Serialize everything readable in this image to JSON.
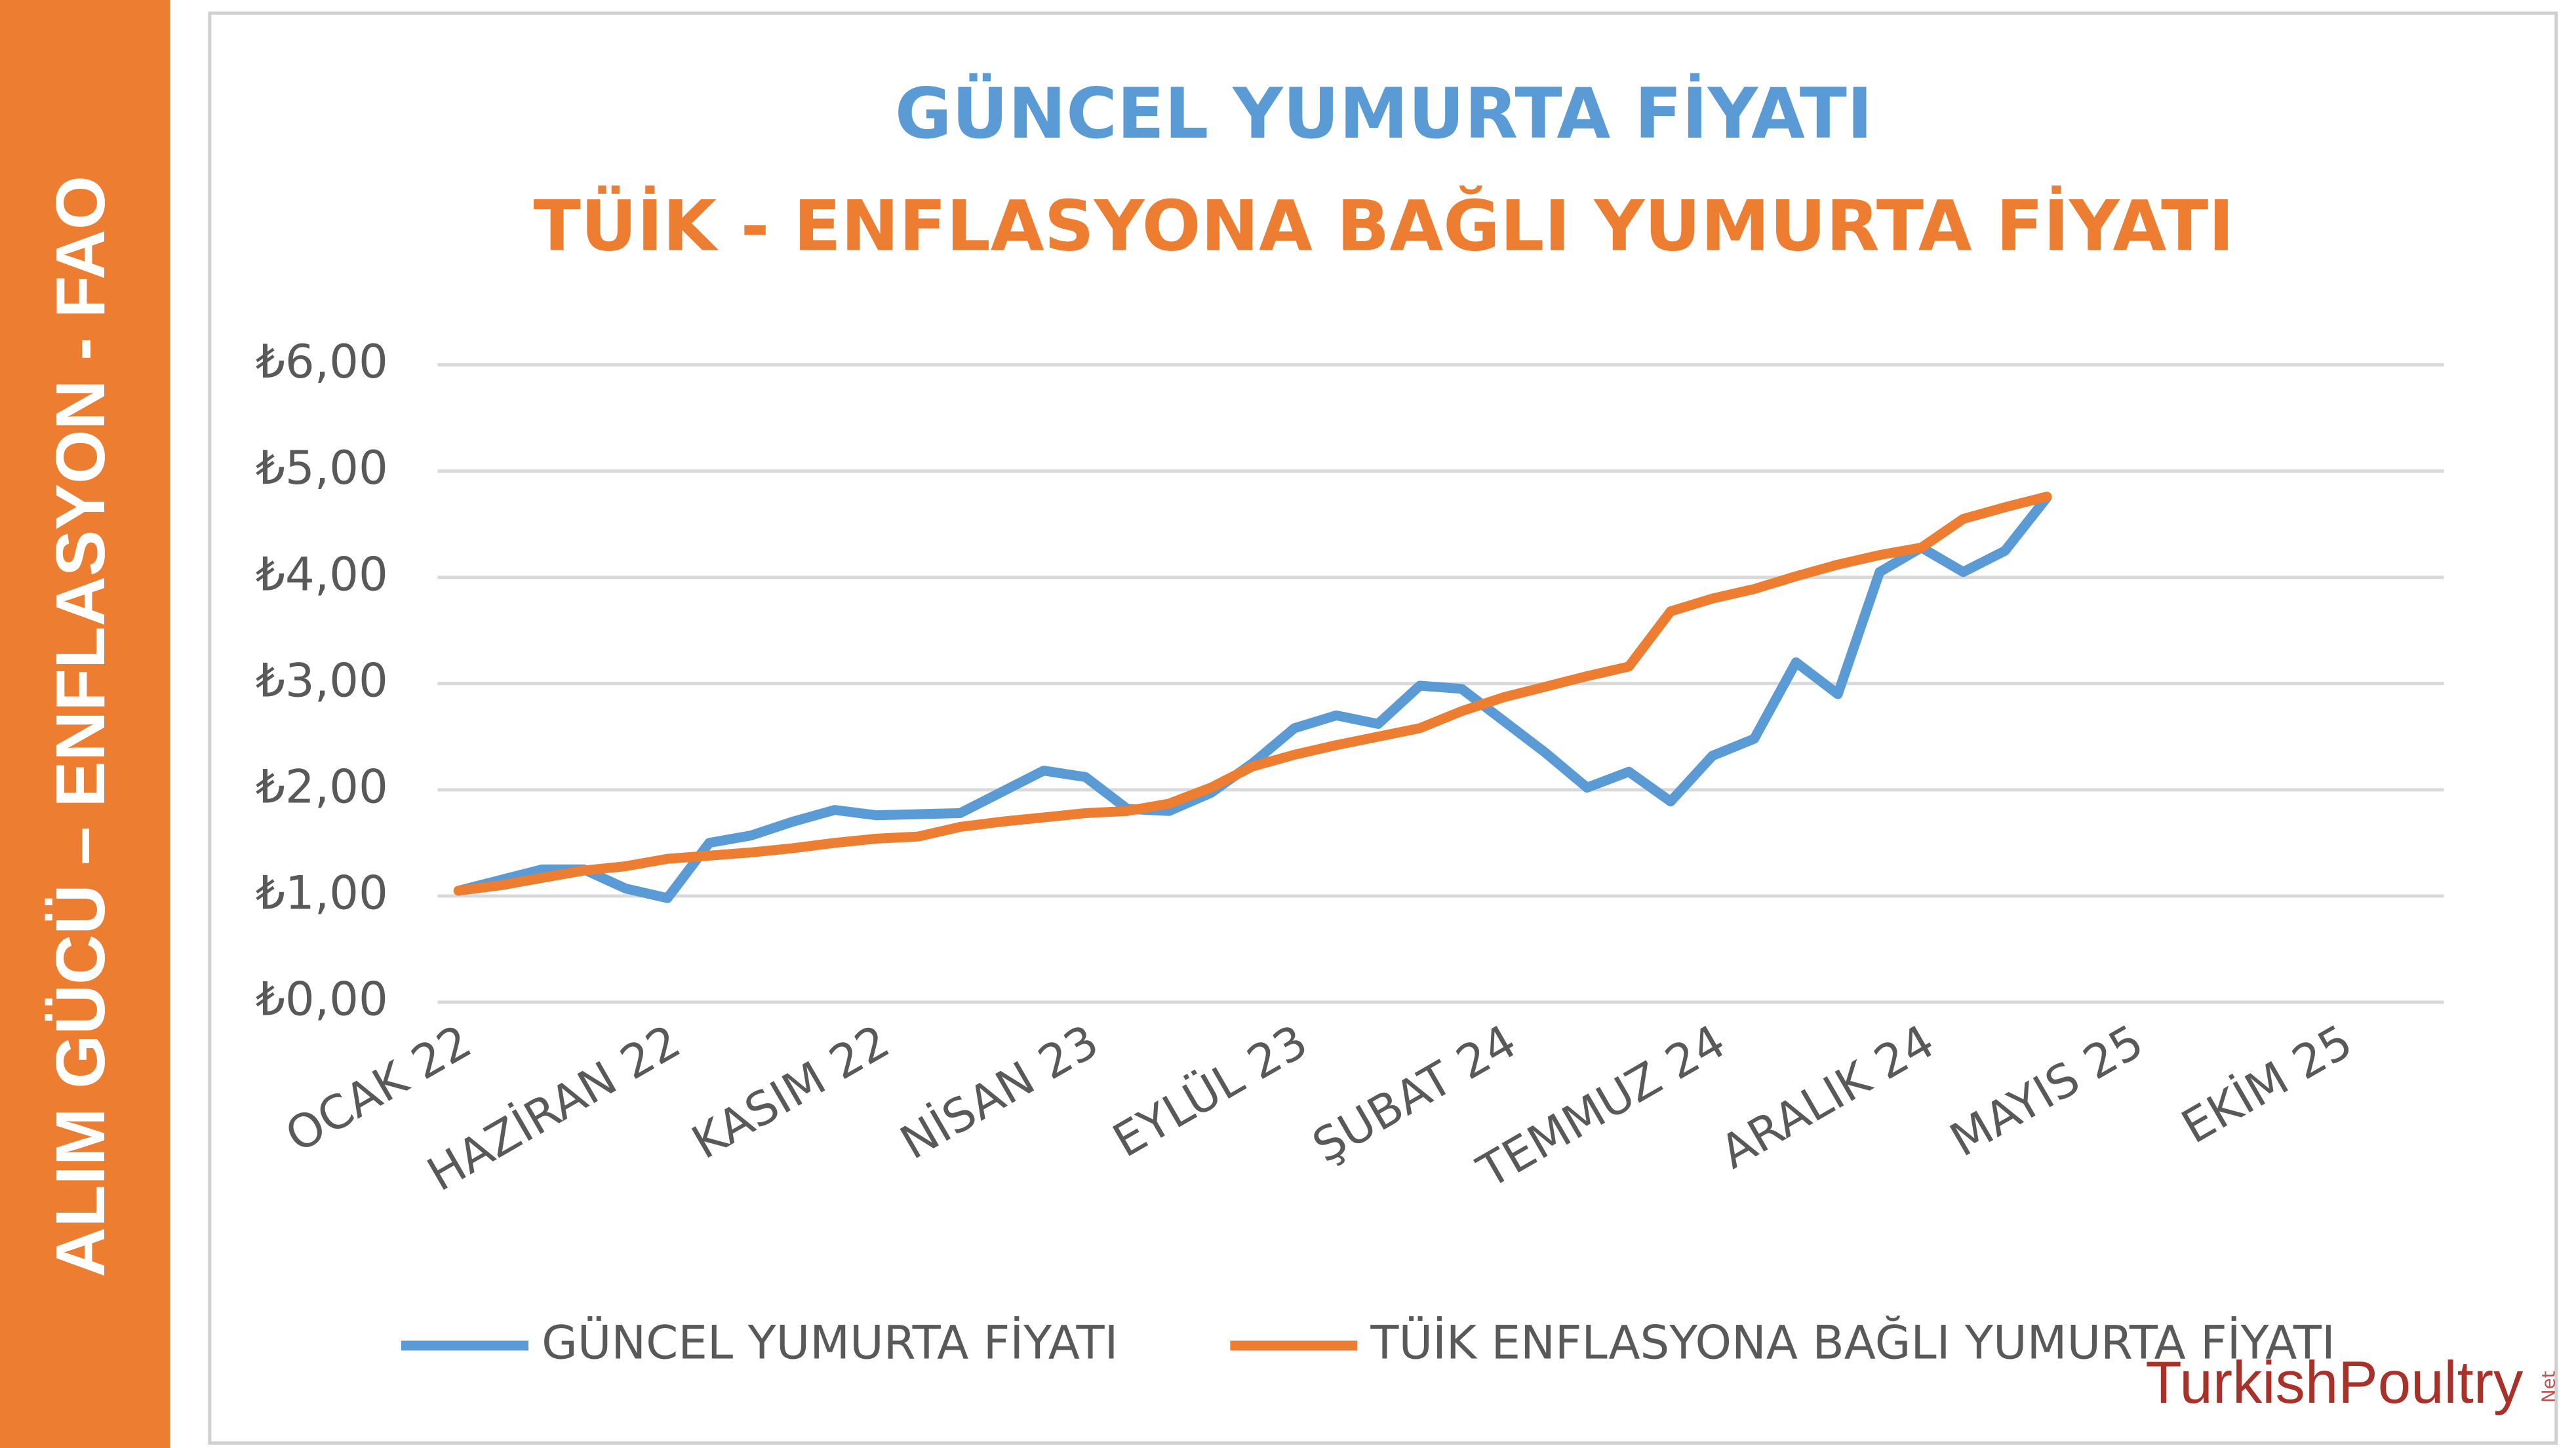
{
  "side_label": "ALIM GÜCÜ – ENFLASYON - FAO",
  "watermark": "TurkishPoultry",
  "watermark_suffix": "Net",
  "chart_data": {
    "type": "line",
    "title": "GÜNCEL YUMURTA FİYATI",
    "subtitle": "TÜİK - ENFLASYONA BAĞLI YUMURTA FİYATI",
    "title_color": "#5B9BD5",
    "subtitle_color": "#ED7D31",
    "categories": [
      "OCAK 22",
      null,
      null,
      null,
      null,
      "HAZİRAN 22",
      null,
      null,
      null,
      null,
      "KASIM 22",
      null,
      null,
      null,
      null,
      "NİSAN 23",
      null,
      null,
      null,
      null,
      "EYLÜL 23",
      null,
      null,
      null,
      null,
      "ŞUBAT 24",
      null,
      null,
      null,
      null,
      "TEMMUZ 24",
      null,
      null,
      null,
      null,
      "ARALIK 24",
      null,
      null,
      null,
      null,
      "MAYIS 25",
      null,
      null,
      null,
      null,
      "EKİM 25",
      null,
      null
    ],
    "series": [
      {
        "name": "GÜNCEL YUMURTA FİYATI",
        "color": "#5B9BD5",
        "values": [
          1.05,
          1.15,
          1.25,
          1.25,
          1.07,
          0.98,
          1.5,
          1.57,
          1.7,
          1.81,
          1.76,
          1.77,
          1.78,
          1.98,
          2.18,
          2.12,
          1.82,
          1.8,
          1.97,
          2.25,
          2.58,
          2.7,
          2.62,
          2.98,
          2.95,
          2.65,
          2.35,
          2.02,
          2.17,
          1.89,
          2.32,
          2.48,
          3.2,
          2.9,
          4.05,
          4.28,
          4.05,
          4.25,
          4.75,
          null,
          null,
          null,
          null,
          null,
          null,
          null,
          null,
          null
        ]
      },
      {
        "name": "TÜİK ENFLASYONA BAĞLI YUMURTA FİYATI",
        "color": "#ED7D31",
        "values": [
          1.05,
          1.1,
          1.17,
          1.24,
          1.28,
          1.35,
          1.38,
          1.41,
          1.45,
          1.5,
          1.54,
          1.56,
          1.65,
          1.7,
          1.74,
          1.78,
          1.8,
          1.87,
          2.02,
          2.22,
          2.33,
          2.42,
          2.5,
          2.58,
          2.74,
          2.87,
          2.97,
          3.07,
          3.16,
          3.68,
          3.8,
          3.89,
          4.01,
          4.12,
          4.21,
          4.28,
          4.55,
          4.66,
          4.76,
          null,
          null,
          null,
          null,
          null,
          null,
          null,
          null,
          null
        ]
      }
    ],
    "ylim": [
      0,
      6
    ],
    "yticks": [
      {
        "value": 0,
        "label": "₺0,00"
      },
      {
        "value": 1,
        "label": "₺1,00"
      },
      {
        "value": 2,
        "label": "₺2,00"
      },
      {
        "value": 3,
        "label": "₺3,00"
      },
      {
        "value": 4,
        "label": "₺4,00"
      },
      {
        "value": 5,
        "label": "₺5,00"
      },
      {
        "value": 6,
        "label": "₺6,00"
      }
    ],
    "grid": true,
    "legend": "bottom"
  }
}
